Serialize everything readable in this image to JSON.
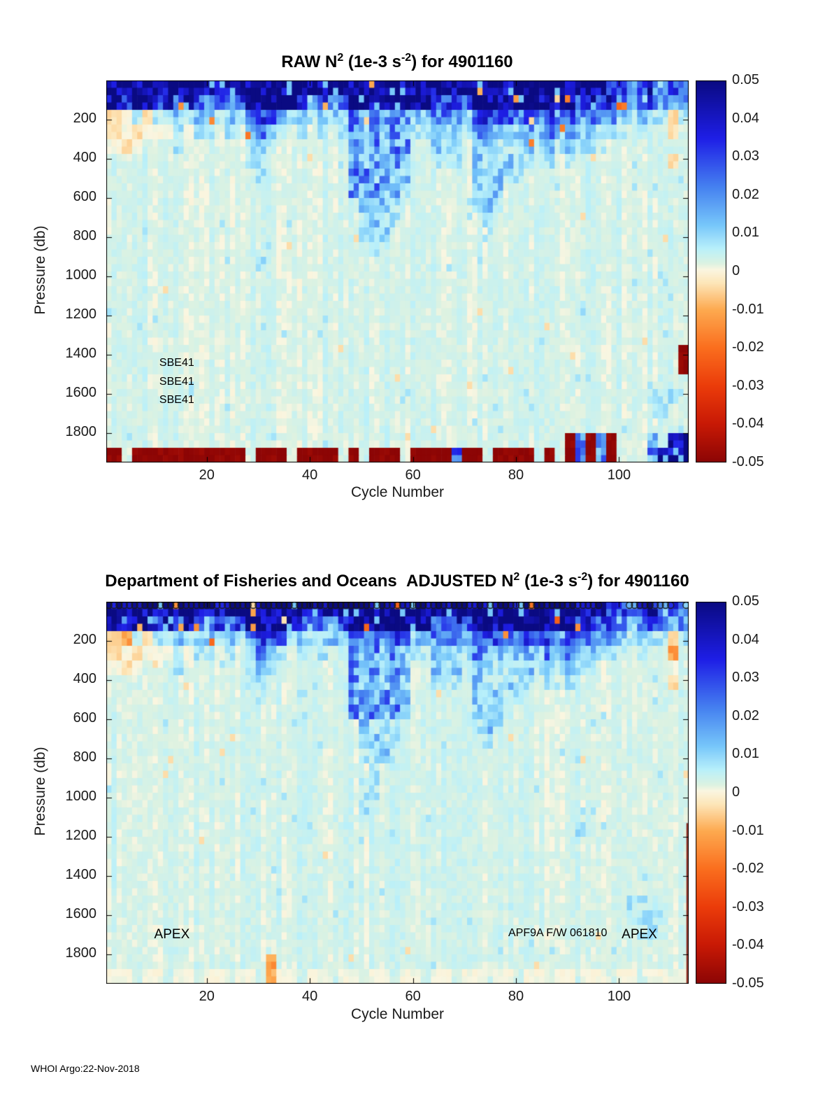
{
  "figure": {
    "footer": "WHOI Argo:22-Nov-2018",
    "background": "#ffffff"
  },
  "colormap_stops": [
    [
      0.05,
      "#0a0a82"
    ],
    [
      0.035,
      "#1e1ee6"
    ],
    [
      0.022,
      "#4682f0"
    ],
    [
      0.012,
      "#78c8fa"
    ],
    [
      0.006,
      "#b9f0fa"
    ],
    [
      0.002,
      "#ddf2e1"
    ],
    [
      0.0005,
      "#faf6e1"
    ],
    [
      -0.003,
      "#fde6b9"
    ],
    [
      -0.01,
      "#fdaa50"
    ],
    [
      -0.02,
      "#fa6e1e"
    ],
    [
      -0.03,
      "#eb3c0a"
    ],
    [
      -0.04,
      "#c81905"
    ],
    [
      -0.05,
      "#8c0505"
    ]
  ],
  "value_map": {
    "A": 0.05,
    "B": 0.04,
    "C": 0.03,
    "D": 0.02,
    "E": 0.012,
    "F": 0.007,
    "G": 0.003,
    "H": 0.0005,
    "I": -0.004,
    "J": -0.012,
    "K": -0.025,
    "L": -0.035,
    "M": -0.045,
    "N": -0.05
  },
  "chart_data": [
    {
      "type": "heatmap",
      "title_parts": {
        "prefix": "RAW N",
        "sup1": "2",
        "mid": " (1e-3 s",
        "sup2": "-2",
        "suffix": ") for 4901160"
      },
      "xlabel": "Cycle Number",
      "ylabel": "Pressure (db)",
      "x_range": [
        0.5,
        113.5
      ],
      "y_range": [
        0,
        1950
      ],
      "y_axis_reversed": true,
      "x_ticks": [
        "20",
        "40",
        "60",
        "80",
        "100"
      ],
      "x_tick_values": [
        20,
        40,
        60,
        80,
        100
      ],
      "y_ticks": [
        "200",
        "400",
        "600",
        "800",
        "1000",
        "1200",
        "1400",
        "1600",
        "1800"
      ],
      "y_tick_values": [
        200,
        400,
        600,
        800,
        1000,
        1200,
        1400,
        1600,
        1800
      ],
      "colorbar_tick_labels": [
        "0.05",
        "0.04",
        "0.03",
        "0.02",
        "0.01",
        "0",
        "-0.01",
        "-0.02",
        "-0.03",
        "-0.04",
        "-0.05"
      ],
      "colorbar_tick_values": [
        0.05,
        0.04,
        0.03,
        0.02,
        0.01,
        0,
        -0.01,
        -0.02,
        -0.03,
        -0.04,
        -0.05
      ],
      "colorbar_range": [
        -0.05,
        0.05
      ],
      "annotations": [
        {
          "text": "SBE41",
          "cycle": 10.8,
          "db": 1450
        },
        {
          "text": "SBE41",
          "cycle": 10.8,
          "db": 1545
        },
        {
          "text": "SBE41",
          "cycle": 10.8,
          "db": 1640
        }
      ],
      "seed": 101,
      "grid_cols": 56,
      "grid_rows": 26,
      "rows": [
        "A48BCDCBDCD",
        "ACA2CACACDCDCA5CDCDCA8C2BCA10CBCBDEDCDED",
        "IHFIFFEFE2FEFDC2DFEFE2FCDCDCDE2D3EC4DCDCDCD4EFEFFIF",
        "IHIH3FHFFGFGEDEFGFGFGFDEDEDEF2E3FD2E2EDEDEDE2F2FGFGGIG",
        "HIHG2GFG2G4FEFGG6DEDED2G2EFEGE2F2FEFEFEF2G2G7",
        "G13F2G2G6DEDEDEG2F3GEF2EF2GFGFG9IG",
        "G14FG8D2EDE2G6EFEFFGG15",
        "G23DEDEDFG6EFEG18",
        "G24EFEFG7FEFG18",
        "G24FEF2G8FG19",
        "G24F2EG29",
        "G25FG30",
        "G14FG41",
        "G56",
        "G56",
        "G45FG10",
        "G56",
        "G56",
        "G55N",
        "G55N",
        "G56",
        "G52F3G",
        "G52F2G2",
        "G56",
        "G44NDNDNG3DGBA",
        "NGN11GN3GN4GNGN3GN4CN2GN4GNGNDNDNG3DABA"
      ]
    },
    {
      "type": "heatmap",
      "title_parts": {
        "prefix": "Department of Fisheries and Oceans  ADJUSTED N",
        "sup1": "2",
        "mid": " (1e-3 s",
        "sup2": "-2",
        "suffix": ") for 4901160"
      },
      "xlabel": "Cycle Number",
      "ylabel": "Pressure (db)",
      "x_range": [
        0.5,
        113.5
      ],
      "y_range": [
        0,
        1950
      ],
      "y_axis_reversed": true,
      "x_ticks": [
        "20",
        "40",
        "60",
        "80",
        "100"
      ],
      "x_tick_values": [
        20,
        40,
        60,
        80,
        100
      ],
      "y_ticks": [
        "200",
        "400",
        "600",
        "800",
        "1000",
        "1200",
        "1400",
        "1600",
        "1800"
      ],
      "y_tick_values": [
        200,
        400,
        600,
        800,
        1000,
        1200,
        1400,
        1600,
        1800
      ],
      "colorbar_tick_labels": [
        "0.05",
        "0.04",
        "0.03",
        "0.02",
        "0.01",
        "0",
        "-0.01",
        "-0.02",
        "-0.03",
        "-0.04",
        "-0.05"
      ],
      "colorbar_tick_values": [
        0.05,
        0.04,
        0.03,
        0.02,
        0.01,
        0,
        -0.01,
        -0.02,
        -0.03,
        -0.04,
        -0.05
      ],
      "colorbar_range": [
        -0.05,
        0.05
      ],
      "annotations": [
        {
          "text": "APEX",
          "cycle": 9.8,
          "db": 1700,
          "size": "lg"
        },
        {
          "text": "APF9A F/W 061810",
          "cycle": 78.5,
          "db": 1700
        },
        {
          "text": "APEX",
          "cycle": 100.5,
          "db": 1700,
          "size": "lg"
        }
      ],
      "markers": {
        "symbol": "o",
        "db": 0,
        "excluded_cycles": [
          97,
          98,
          99,
          100,
          101,
          111,
          112
        ]
      },
      "features": [
        {
          "type": "vline",
          "cycle": 113.2,
          "db_from": 1130,
          "db_to": 1950,
          "width": 2,
          "color": "#8a1a10"
        }
      ],
      "seed": 202,
      "grid_cols": 56,
      "grid_rows": 26,
      "rows": [
        "A48BCDCBDCD",
        "ACA2CACACDCDCA5CDCDCA8C2BCA10CBCBDEDCDED",
        "IJFIFFEFE2FEFDC2DFEFE2FCDCDCDE2D3EC4DCDCDCD4EFEFFIF",
        "IHIH3FHFFGFGEDEFGFGFGFDEDEDEF2E3FD2E2EDEDEDE2F2FGFGGJG",
        "HIHG2GFG2G4FEFGG6DEDED2G2EFEGE2F2FEFEFEF2G2G7",
        "G13F2G2G6DEDEDEG2F3GEF2EF2GFGFG9IG",
        "G14FG8D2EDE2G6EFEFFGG15",
        "G23DEDEDFG6EFEG18",
        "G24EFEFG7FEFG18",
        "G24FEF2G8FG19",
        "G24F2EG29",
        "G25FG30",
        "G14FG9F2G30",
        "G24F2G30",
        "G24FG31",
        "G45FG10",
        "G56",
        "G56",
        "G56",
        "G56",
        "G50F3G3",
        "G50F4G2",
        "G51F2G3",
        "G56",
        "G15JG40",
        "H2GH2GH2GH2GH2GJH2GH2GH2GH2GH2GH2GH2GH2GH2GH2GH2GH2GH2GH"
      ]
    }
  ]
}
